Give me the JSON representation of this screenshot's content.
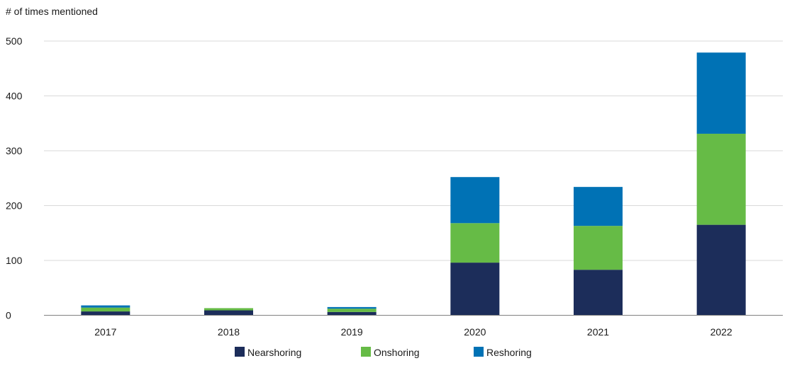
{
  "chart_data": {
    "type": "bar",
    "stacked": true,
    "title": "",
    "ylabel": "# of times mentioned",
    "xlabel": "",
    "ylim": [
      0,
      500
    ],
    "yticks": [
      0,
      100,
      200,
      300,
      400,
      500
    ],
    "grid": true,
    "legend_position": "bottom",
    "categories": [
      "2017",
      "2018",
      "2019",
      "2020",
      "2021",
      "2022"
    ],
    "series": [
      {
        "name": "Nearshoring",
        "color": "#1c2d5a",
        "values": [
          7,
          9,
          6,
          96,
          83,
          165
        ]
      },
      {
        "name": "Onshoring",
        "color": "#66bb46",
        "values": [
          7,
          4,
          6,
          72,
          80,
          166
        ]
      },
      {
        "name": "Reshoring",
        "color": "#0072b5",
        "values": [
          4,
          0,
          3,
          84,
          71,
          148
        ]
      }
    ]
  }
}
